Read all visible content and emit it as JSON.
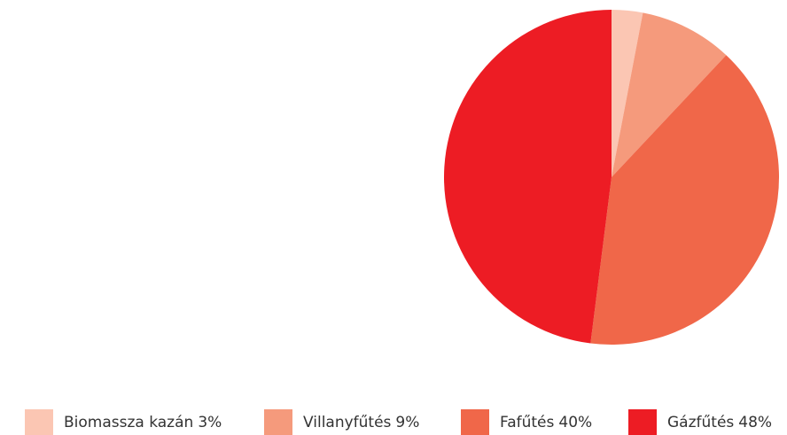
{
  "chart_data": {
    "type": "pie",
    "categories": [
      "Biomassza kazán",
      "Villanyfűtés",
      "Fafűtés",
      "Gázfűtés"
    ],
    "values": [
      3,
      9,
      40,
      48
    ],
    "value_labels": [
      "3%",
      "9%",
      "40%",
      "48%"
    ],
    "colors": [
      "#fbc6b3",
      "#f59a7c",
      "#f06749",
      "#ed1c24"
    ],
    "legend": "bottom"
  }
}
